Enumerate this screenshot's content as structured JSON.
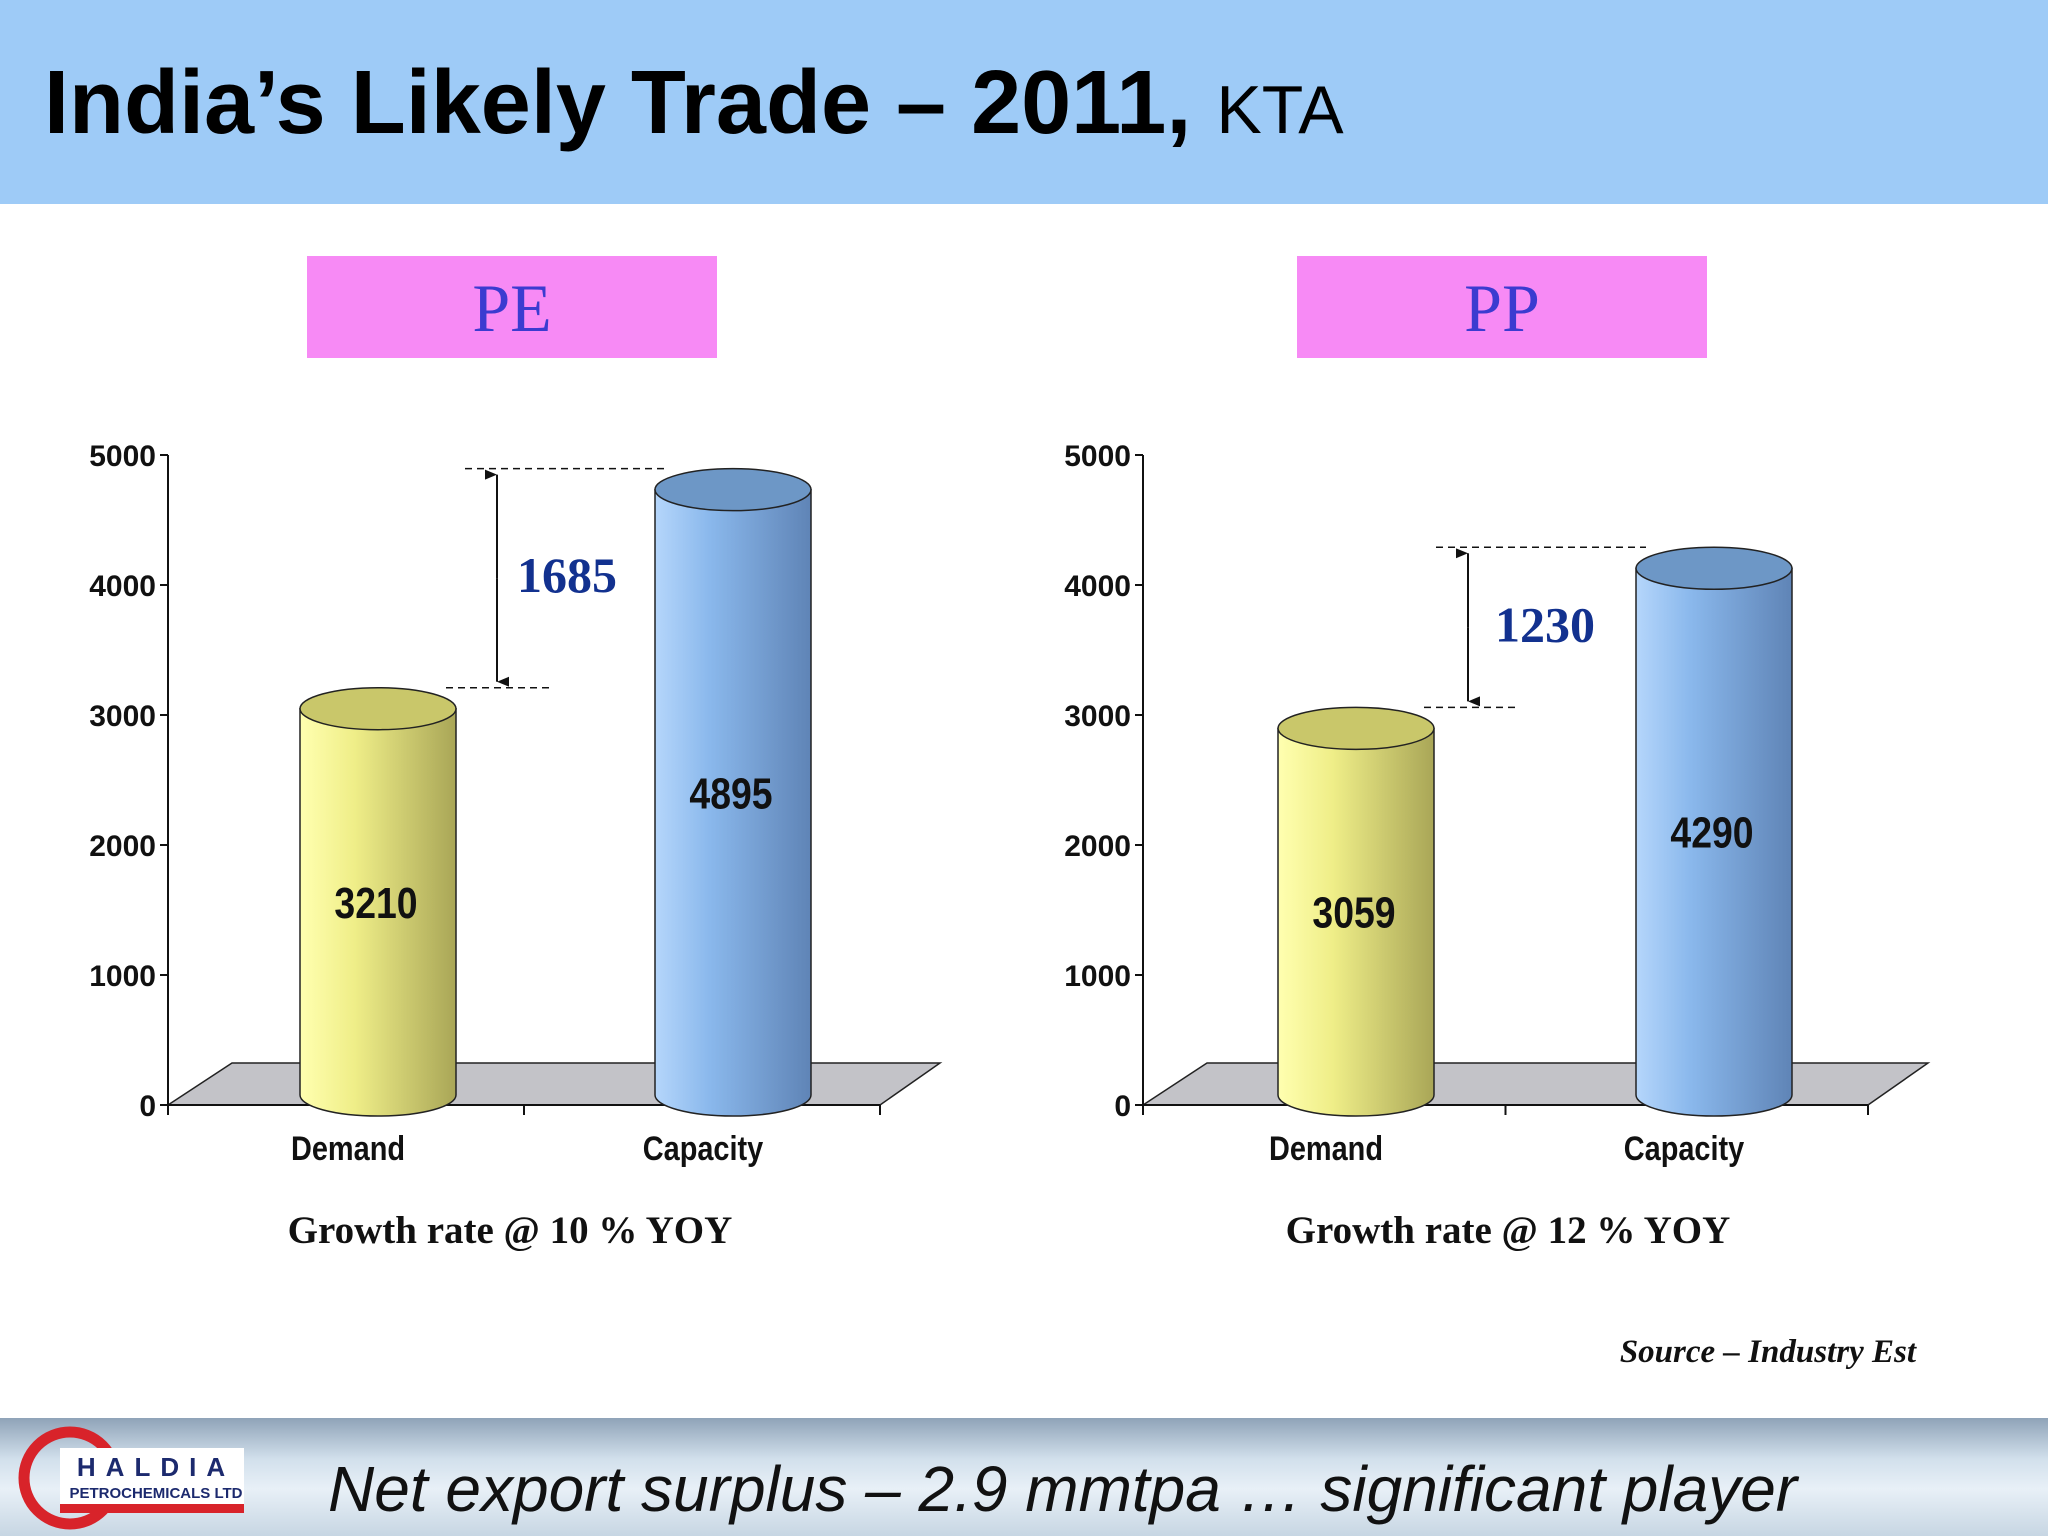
{
  "title": {
    "main": "India’s Likely Trade – 2011,",
    "unit": "KTA"
  },
  "panels": [
    {
      "label": "PE",
      "growth": "Growth rate @ 10 %  YOY",
      "gap_label": "1685"
    },
    {
      "label": "PP",
      "growth": "Growth rate @ 12 %  YOY",
      "gap_label": "1230"
    }
  ],
  "source": "Source – Industry Est",
  "footer": {
    "text": "Net export surplus – 2.9 mmtpa     … significant player"
  },
  "logo": {
    "name": "HALDIA",
    "sub": "PETROCHEMICALS LTD"
  },
  "colors": {
    "header_bg": "#9ecbf7",
    "label_bg": "#f78af5",
    "label_text": "#3b3bd0",
    "demand": "#f2f08a",
    "capacity": "#8db8ea",
    "gap_text": "#12318f",
    "logo_red": "#d8232a"
  },
  "chart_data": [
    {
      "type": "bar",
      "title": "PE",
      "categories": [
        "Demand",
        "Capacity"
      ],
      "values": [
        3210,
        4895
      ],
      "ylim": [
        0,
        5000
      ],
      "yticks": [
        0,
        1000,
        2000,
        3000,
        4000,
        5000
      ],
      "annotation": "1685"
    },
    {
      "type": "bar",
      "title": "PP",
      "categories": [
        "Demand",
        "Capacity"
      ],
      "values": [
        3059,
        4290
      ],
      "ylim": [
        0,
        5000
      ],
      "yticks": [
        0,
        1000,
        2000,
        3000,
        4000,
        5000
      ],
      "annotation": "1230"
    }
  ]
}
